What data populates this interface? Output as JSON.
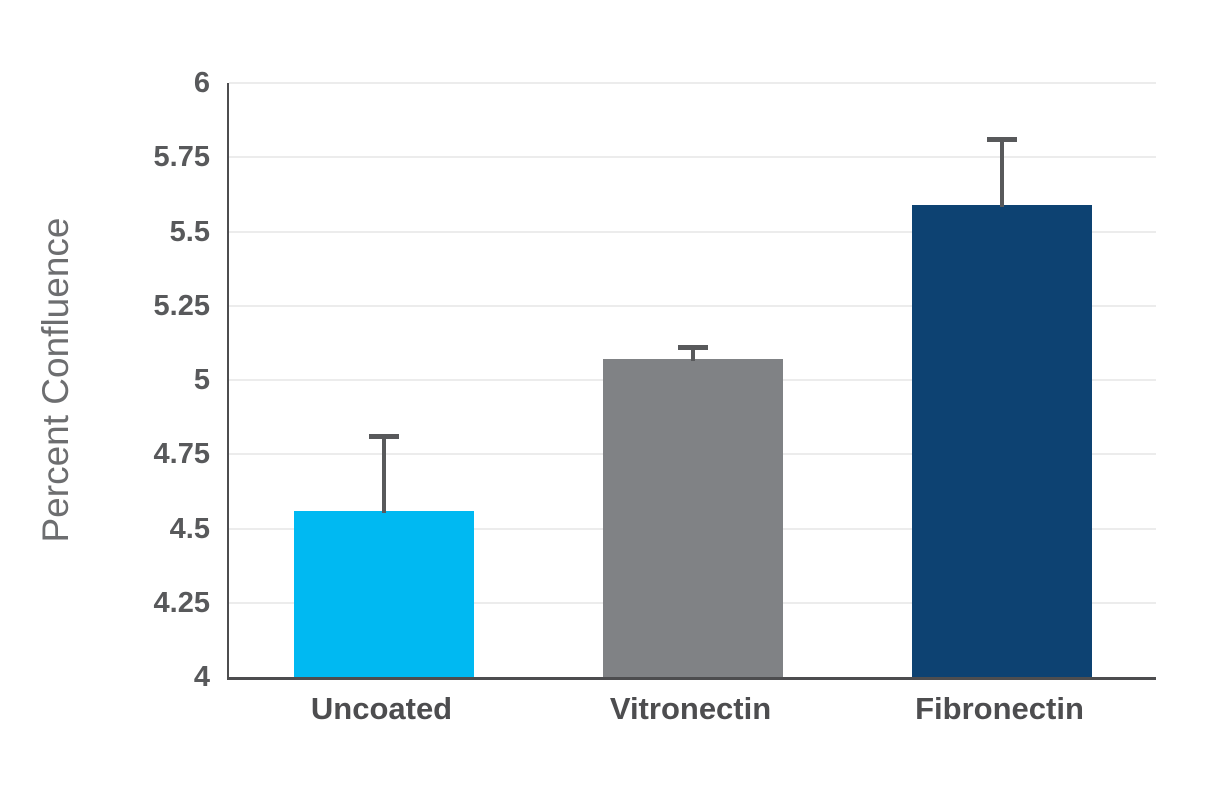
{
  "chart_data": {
    "type": "bar",
    "title": "",
    "ylabel": "Percent Confluence",
    "xlabel": "",
    "categories": [
      "Uncoated",
      "Vitronectin",
      "Fibronectin"
    ],
    "values": [
      4.56,
      5.07,
      5.59
    ],
    "error_bar_tops": [
      4.81,
      5.11,
      5.81
    ],
    "bar_colors": [
      "#00B9F2",
      "#808285",
      "#0D4272"
    ],
    "error_bar_color": "#58595B",
    "ylim": [
      4,
      6
    ],
    "yticks": [
      4,
      4.25,
      4.5,
      4.75,
      5,
      5.25,
      5.5,
      5.75,
      6
    ],
    "ytick_labels": [
      "4",
      "4.25",
      "4.5",
      "4.75",
      "5",
      "5.25",
      "5.5",
      "5.75",
      "6"
    ],
    "grid": true,
    "gridline_color": "#ececec",
    "axis_color": "#4D4D4F",
    "legend": "none",
    "background": "#ffffff"
  }
}
